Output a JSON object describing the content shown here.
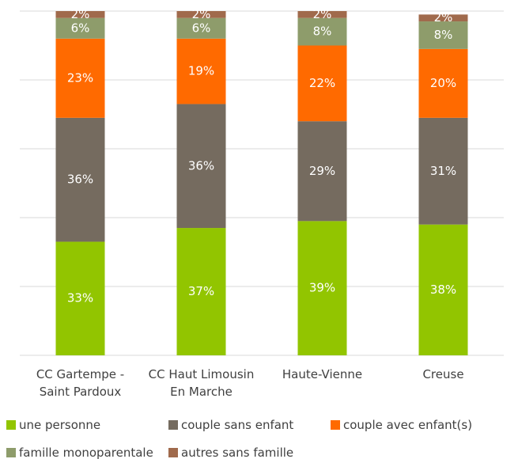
{
  "chart_data": {
    "type": "stacked_bar",
    "categories": [
      "CC Gartempe - Saint Pardoux",
      "CC Haut Limousin En Marche",
      "Haute-Vienne",
      "Creuse"
    ],
    "series": [
      {
        "name": "une personne",
        "color": "#92c500",
        "values": [
          33,
          37,
          39,
          38
        ],
        "value_labels": [
          "33%",
          "37%",
          "39%",
          "38%"
        ]
      },
      {
        "name": "couple sans enfant",
        "color": "#756b5f",
        "values": [
          36,
          36,
          29,
          31
        ],
        "value_labels": [
          "36%",
          "36%",
          "29%",
          "31%"
        ]
      },
      {
        "name": "couple avec enfant(s)",
        "color": "#ff6a00",
        "values": [
          23,
          19,
          22,
          20
        ],
        "value_labels": [
          "23%",
          "19%",
          "22%",
          "20%"
        ]
      },
      {
        "name": "famille monoparentale",
        "color": "#8e9c6b",
        "values": [
          6,
          6,
          8,
          8
        ],
        "value_labels": [
          "6%",
          "6%",
          "8%",
          "8%"
        ]
      },
      {
        "name": "autres sans famille",
        "color": "#a06a4c",
        "values": [
          2,
          2,
          2,
          2
        ],
        "value_labels": [
          "2%",
          "2%",
          "2%",
          "2%"
        ]
      }
    ],
    "ylim": [
      0,
      100
    ],
    "yticks": [
      0,
      20,
      40,
      60,
      80,
      100
    ],
    "grid": true
  }
}
